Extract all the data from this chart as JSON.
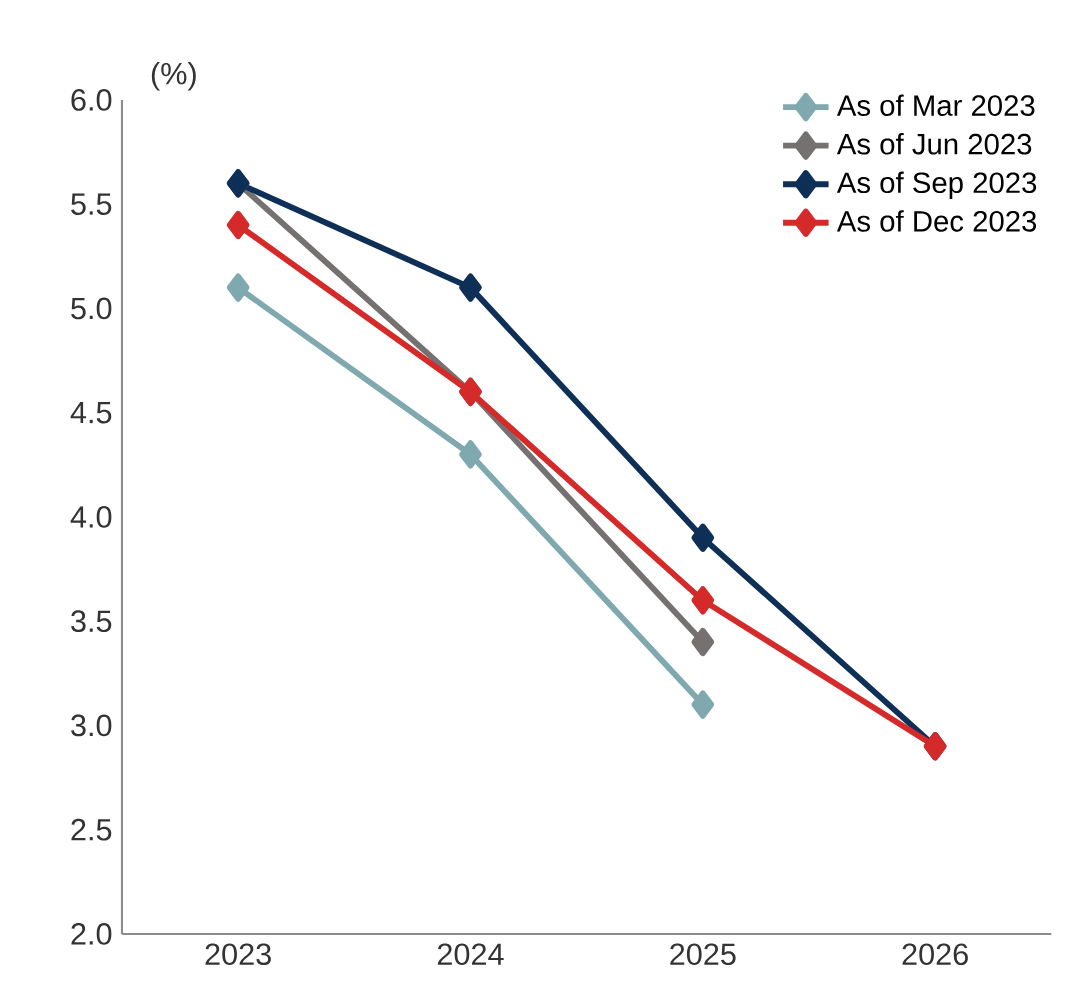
{
  "chart_data": {
    "type": "line",
    "ylabel": "(%)",
    "categories": [
      "2023",
      "2024",
      "2025",
      "2026"
    ],
    "series": [
      {
        "name": "As of Mar 2023",
        "color": "#7fa9ae",
        "values": [
          5.1,
          4.3,
          3.1,
          null
        ]
      },
      {
        "name": "As of Jun 2023",
        "color": "#767171",
        "values": [
          5.6,
          4.6,
          3.4,
          null
        ]
      },
      {
        "name": "As of Sep 2023",
        "color": "#0e2f56",
        "values": [
          5.6,
          5.1,
          3.9,
          2.9
        ]
      },
      {
        "name": "As of Dec 2023",
        "color": "#d42a2a",
        "values": [
          5.4,
          4.6,
          3.6,
          2.9
        ]
      }
    ],
    "ylim": [
      2,
      6
    ],
    "yticks": [
      {
        "value": 2,
        "label": "2.0"
      },
      {
        "value": 2.5,
        "label": "2.5"
      },
      {
        "value": 3,
        "label": "3.0"
      },
      {
        "value": 3.5,
        "label": "3.5"
      },
      {
        "value": 4,
        "label": "4.0"
      },
      {
        "value": 4.5,
        "label": "4.5"
      },
      {
        "value": 5,
        "label": "5.0"
      },
      {
        "value": 5.5,
        "label": "5.5"
      },
      {
        "value": 6,
        "label": "6.0"
      }
    ],
    "grid": false,
    "legend": "top right",
    "marker": "diamond",
    "line_style": "solid"
  }
}
